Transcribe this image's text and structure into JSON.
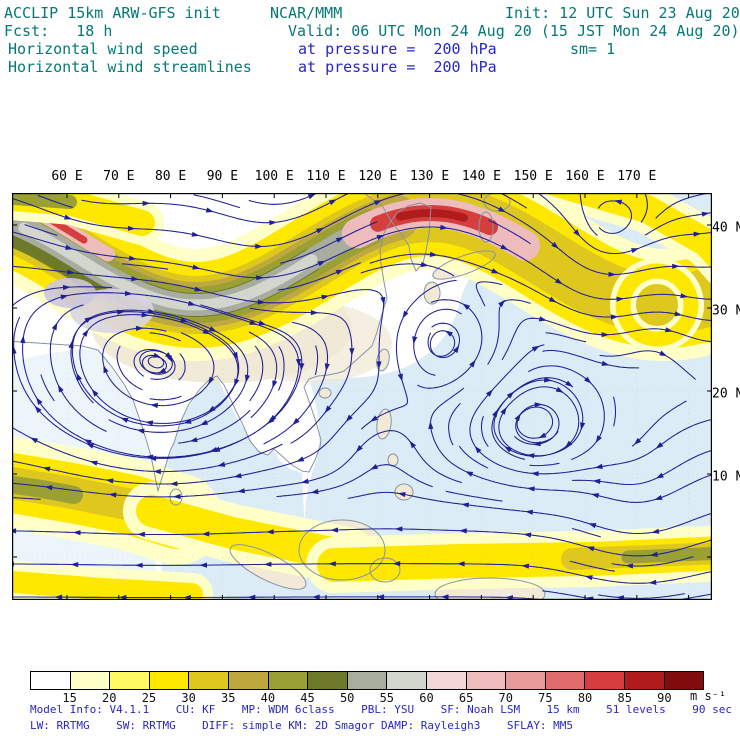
{
  "header": {
    "title": "ACCLIP 15km ARW-GFS init",
    "fcst": "Fcst:   18 h",
    "field1": "Horizontal wind speed",
    "field2": "Horizontal wind streamlines",
    "center_org": "NCAR/MMM",
    "valid": "Valid: 06 UTC Mon 24 Aug 20 (15 JST Mon 24 Aug 20)",
    "pressure1": "at pressure =  200 hPa",
    "pressure2": "at pressure =  200 hPa",
    "init": "Init: 12 UTC Sun 23 Aug 20",
    "sm": "sm= 1"
  },
  "map": {
    "lon_ticks": [
      "60 E",
      "70 E",
      "80 E",
      "90 E",
      "100 E",
      "110 E",
      "120 E",
      "130 E",
      "140 E",
      "150 E",
      "160 E",
      "170 E"
    ],
    "lat_ticks": [
      "40 N",
      "30 N",
      "20 N",
      "10 N"
    ]
  },
  "colorbar": {
    "levels": [
      15,
      20,
      25,
      30,
      35,
      40,
      45,
      50,
      55,
      60,
      65,
      70,
      75,
      80,
      85,
      90
    ],
    "colors": [
      "#ffffff",
      "#ffffc8",
      "#fff963",
      "#ffe800",
      "#dfc81e",
      "#bfa93e",
      "#9aa034",
      "#6e7a2a",
      "#a8ada0",
      "#d3d6cc",
      "#f2d8d8",
      "#eebcbc",
      "#e89a9a",
      "#e06c6c",
      "#d63e3e",
      "#b01c1c",
      "#800c0c"
    ],
    "unit": "m s⁻¹"
  },
  "footer": {
    "line1": "Model Info: V4.1.1    CU: KF    MP: WDM 6class    PBL: YSU    SF: Noah LSM    15 km    51 levels    90 sec",
    "line2": "LW: RRTMG    SW: RRTMG    DIFF: simple KM: 2D Smagor DAMP: Rayleigh3    SFLAY: MM5"
  },
  "theme": {
    "teal": "#067878",
    "blue": "#2626c9",
    "stream": "#1f1f96",
    "ocean": "#dcecf6",
    "land": "#f2e9d6"
  }
}
